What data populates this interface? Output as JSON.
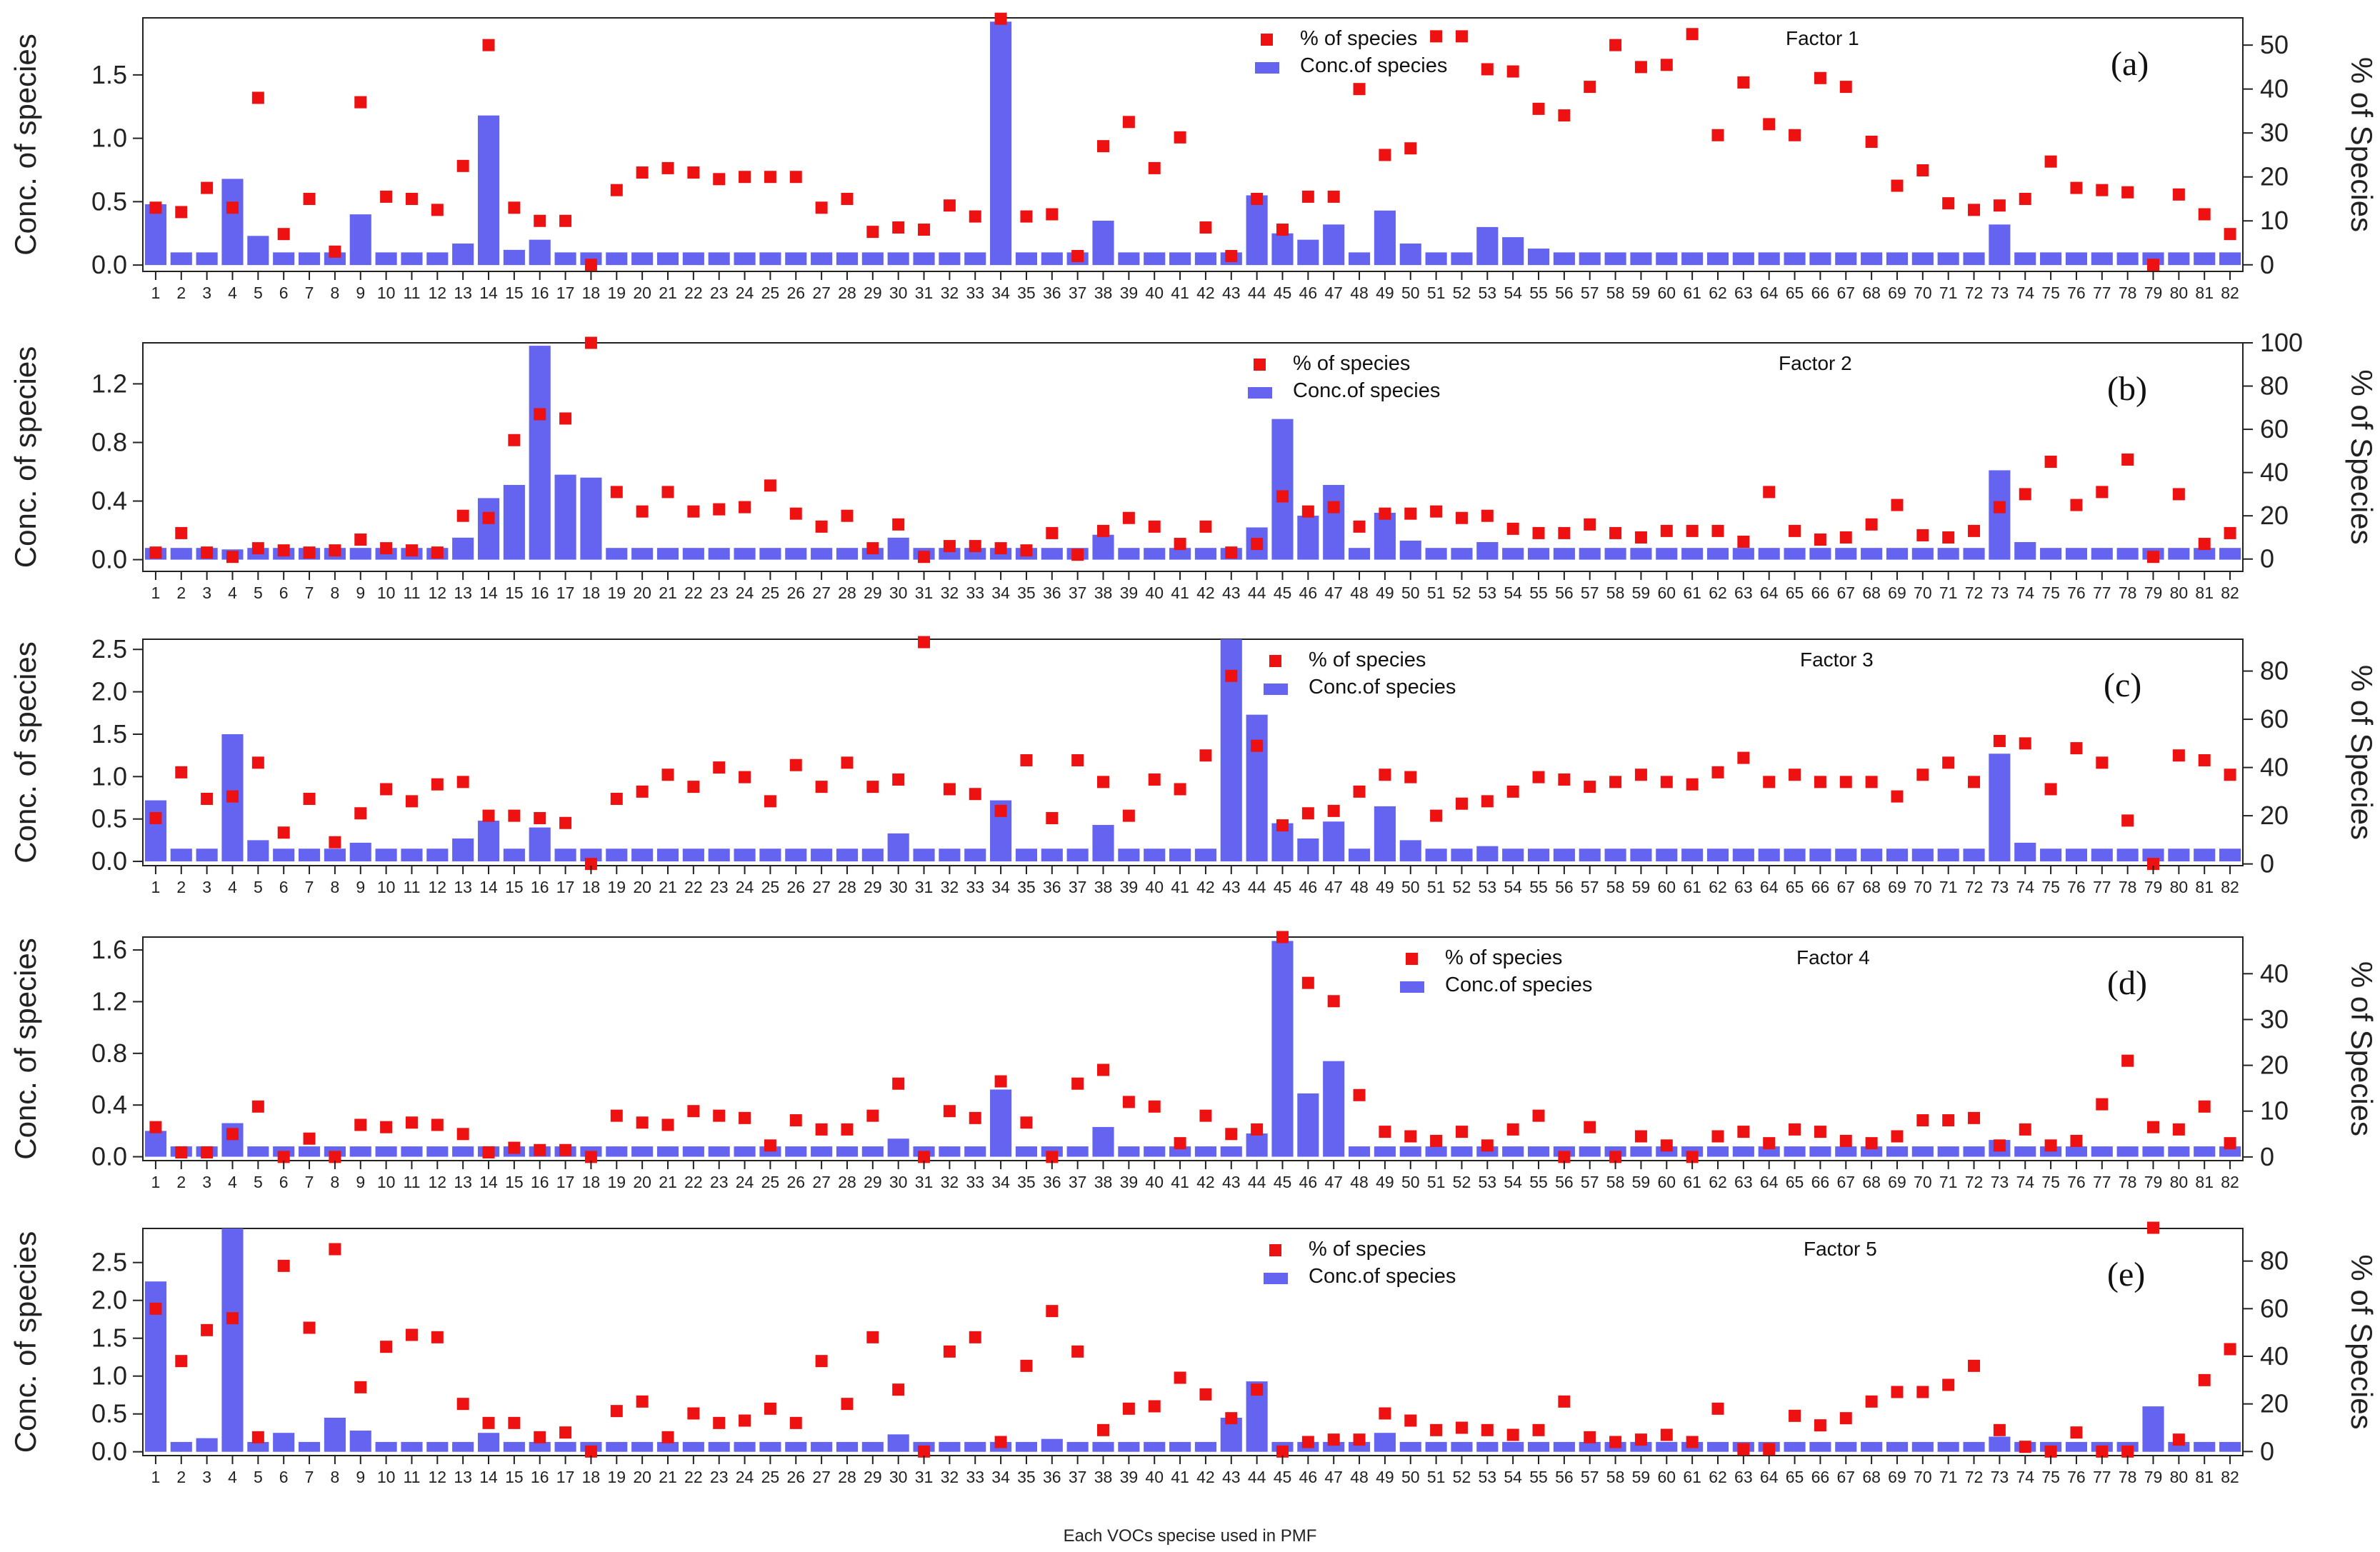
{
  "x_axis_label": "Each VOCs specise used in PMF",
  "y_axis_left_label": "Conc. of species",
  "y_axis_right_labels": [
    "% of Species",
    "% of Species",
    "% of Species",
    "% of Species",
    "% of Species"
  ],
  "colors": {
    "bar": "#6464f0",
    "marker": "#ee1111",
    "axis": "#222222"
  },
  "chart_data": [
    {
      "type": "bar+scatter",
      "panel_label": "(a)",
      "factor_label": "Factor 1",
      "legend_percent": "% of species",
      "legend_conc": "Conc.of species",
      "ylim_left": [
        -0.05,
        1.95
      ],
      "ylim_right": [
        -1.5,
        56.2
      ],
      "yticks_left": [
        "0.0",
        "0.5",
        "1.0",
        "1.5"
      ],
      "yticks_right": [
        "0",
        "10",
        "20",
        "30",
        "40",
        "50"
      ],
      "categories": [
        "1",
        "2",
        "3",
        "4",
        "5",
        "6",
        "7",
        "8",
        "9",
        "10",
        "11",
        "12",
        "13",
        "14",
        "15",
        "16",
        "17",
        "18",
        "19",
        "20",
        "21",
        "22",
        "23",
        "24",
        "25",
        "26",
        "27",
        "28",
        "29",
        "30",
        "31",
        "32",
        "33",
        "34",
        "35",
        "36",
        "37",
        "38",
        "39",
        "40",
        "41",
        "42",
        "43",
        "44",
        "45",
        "46",
        "47",
        "48",
        "49",
        "50",
        "51",
        "52",
        "53",
        "54",
        "55",
        "56",
        "57",
        "58",
        "59",
        "60",
        "61",
        "62",
        "63",
        "64",
        "65",
        "66",
        "67",
        "68",
        "69",
        "70",
        "71",
        "72",
        "73",
        "74",
        "75",
        "76",
        "77",
        "78",
        "79",
        "80",
        "81",
        "82"
      ],
      "conc": [
        0.48,
        0.1,
        0.1,
        0.68,
        0.23,
        0.1,
        0.1,
        0.1,
        0.4,
        0.1,
        0.1,
        0.1,
        0.17,
        1.18,
        0.12,
        0.2,
        0.1,
        0.1,
        0.1,
        0.1,
        0.1,
        0.1,
        0.1,
        0.1,
        0.1,
        0.1,
        0.1,
        0.1,
        0.1,
        0.1,
        0.1,
        0.1,
        0.1,
        1.92,
        0.1,
        0.1,
        0.1,
        0.35,
        0.1,
        0.1,
        0.1,
        0.1,
        0.1,
        0.55,
        0.25,
        0.2,
        0.32,
        0.1,
        0.43,
        0.17,
        0.1,
        0.1,
        0.3,
        0.22,
        0.13,
        0.1,
        0.1,
        0.1,
        0.1,
        0.1,
        0.1,
        0.1,
        0.1,
        0.1,
        0.1,
        0.1,
        0.1,
        0.1,
        0.1,
        0.1,
        0.1,
        0.1,
        0.32,
        0.1,
        0.1,
        0.1,
        0.1,
        0.1,
        0.1,
        0.1,
        0.1,
        0.1
      ],
      "percent": [
        13,
        12,
        17.5,
        13,
        38,
        7,
        15,
        3,
        37,
        15.5,
        15,
        12.5,
        22.5,
        50,
        13,
        10,
        10,
        0,
        17,
        21,
        22,
        21,
        19.5,
        20,
        20,
        20,
        13,
        15,
        7.5,
        8.5,
        8,
        13.5,
        11,
        56,
        11,
        11.5,
        2,
        27,
        32.5,
        22,
        29,
        8.5,
        2,
        15,
        8,
        15.5,
        15.5,
        40,
        25,
        26.5,
        52,
        52,
        44.5,
        44,
        35.5,
        34,
        40.5,
        50,
        45,
        45.5,
        52.5,
        29.5,
        41.5,
        32,
        29.5,
        42.5,
        40.5,
        28,
        18,
        21.5,
        14,
        12.5,
        13.5,
        15,
        23.5,
        17.5,
        17,
        16.5,
        0,
        16,
        11.5,
        7
      ]
    },
    {
      "type": "bar+scatter",
      "panel_label": "(b)",
      "factor_label": "Factor 2",
      "legend_percent": "% of species",
      "legend_conc": "Conc.of species",
      "ylim_left": [
        -0.08,
        1.48
      ],
      "ylim_right": [
        -5.7,
        100
      ],
      "yticks_left": [
        "0.0",
        "0.4",
        "0.8",
        "1.2"
      ],
      "yticks_right": [
        "0",
        "20",
        "40",
        "60",
        "80",
        "100"
      ],
      "categories": [
        "1",
        "2",
        "3",
        "4",
        "5",
        "6",
        "7",
        "8",
        "9",
        "10",
        "11",
        "12",
        "13",
        "14",
        "15",
        "16",
        "17",
        "18",
        "19",
        "20",
        "21",
        "22",
        "23",
        "24",
        "25",
        "26",
        "27",
        "28",
        "29",
        "30",
        "31",
        "32",
        "33",
        "34",
        "35",
        "36",
        "37",
        "38",
        "39",
        "40",
        "41",
        "42",
        "43",
        "44",
        "45",
        "46",
        "47",
        "48",
        "49",
        "50",
        "51",
        "52",
        "53",
        "54",
        "55",
        "56",
        "57",
        "58",
        "59",
        "60",
        "61",
        "62",
        "63",
        "64",
        "65",
        "66",
        "67",
        "68",
        "69",
        "70",
        "71",
        "72",
        "73",
        "74",
        "75",
        "76",
        "77",
        "78",
        "79",
        "80",
        "81",
        "82"
      ],
      "conc": [
        0.08,
        0.08,
        0.08,
        0.07,
        0.08,
        0.08,
        0.08,
        0.08,
        0.08,
        0.08,
        0.08,
        0.08,
        0.15,
        0.42,
        0.51,
        1.46,
        0.58,
        0.56,
        0.08,
        0.08,
        0.08,
        0.08,
        0.08,
        0.08,
        0.08,
        0.08,
        0.08,
        0.08,
        0.08,
        0.15,
        0.08,
        0.08,
        0.08,
        0.08,
        0.08,
        0.08,
        0.08,
        0.17,
        0.08,
        0.08,
        0.08,
        0.08,
        0.08,
        0.22,
        0.96,
        0.3,
        0.51,
        0.08,
        0.32,
        0.13,
        0.08,
        0.08,
        0.12,
        0.08,
        0.08,
        0.08,
        0.08,
        0.08,
        0.08,
        0.08,
        0.08,
        0.08,
        0.08,
        0.08,
        0.08,
        0.08,
        0.08,
        0.08,
        0.08,
        0.08,
        0.08,
        0.08,
        0.61,
        0.12,
        0.08,
        0.08,
        0.08,
        0.08,
        0.08,
        0.08,
        0.08,
        0.08
      ],
      "percent": [
        3,
        12,
        3,
        1,
        5,
        4,
        3,
        4,
        9,
        5,
        4,
        3,
        20,
        19,
        55,
        67,
        65,
        100,
        31,
        22,
        31,
        22,
        23,
        24,
        34,
        21,
        15,
        20,
        5,
        16,
        1,
        6,
        6,
        5,
        4,
        12,
        2,
        13,
        19,
        15,
        7,
        15,
        3,
        7,
        29,
        22,
        24,
        15,
        21,
        21,
        22,
        19,
        20,
        14,
        12,
        12,
        16,
        12,
        10,
        13,
        13,
        13,
        8,
        31,
        13,
        9,
        10,
        16,
        25,
        11,
        10,
        13,
        24,
        30,
        45,
        25,
        31,
        46,
        1,
        30,
        7,
        12
      ]
    },
    {
      "type": "bar+scatter",
      "panel_label": "(c)",
      "factor_label": "Factor 3",
      "legend_percent": "% of species",
      "legend_conc": "Conc.of species",
      "ylim_left": [
        -0.05,
        2.62
      ],
      "ylim_right": [
        -0.7,
        93.2
      ],
      "yticks_left": [
        "0.0",
        "0.5",
        "1.0",
        "1.5",
        "2.0",
        "2.5"
      ],
      "yticks_right": [
        "0",
        "20",
        "40",
        "60",
        "80"
      ],
      "categories": [
        "1",
        "2",
        "3",
        "4",
        "5",
        "6",
        "7",
        "8",
        "9",
        "10",
        "11",
        "12",
        "13",
        "14",
        "15",
        "16",
        "17",
        "18",
        "19",
        "20",
        "21",
        "22",
        "23",
        "24",
        "25",
        "26",
        "27",
        "28",
        "29",
        "30",
        "31",
        "32",
        "33",
        "34",
        "35",
        "36",
        "37",
        "38",
        "39",
        "40",
        "41",
        "42",
        "43",
        "44",
        "45",
        "46",
        "47",
        "48",
        "49",
        "50",
        "51",
        "52",
        "53",
        "54",
        "55",
        "56",
        "57",
        "58",
        "59",
        "60",
        "61",
        "62",
        "63",
        "64",
        "65",
        "66",
        "67",
        "68",
        "69",
        "70",
        "71",
        "72",
        "73",
        "74",
        "75",
        "76",
        "77",
        "78",
        "79",
        "80",
        "81",
        "82"
      ],
      "conc": [
        0.72,
        0.15,
        0.15,
        1.5,
        0.25,
        0.15,
        0.15,
        0.15,
        0.22,
        0.15,
        0.15,
        0.15,
        0.27,
        0.48,
        0.15,
        0.4,
        0.15,
        0.15,
        0.15,
        0.15,
        0.15,
        0.15,
        0.15,
        0.15,
        0.15,
        0.15,
        0.15,
        0.15,
        0.15,
        0.33,
        0.15,
        0.15,
        0.15,
        0.72,
        0.15,
        0.15,
        0.15,
        0.43,
        0.15,
        0.15,
        0.15,
        0.15,
        2.62,
        1.73,
        0.45,
        0.27,
        0.47,
        0.15,
        0.65,
        0.25,
        0.15,
        0.15,
        0.18,
        0.15,
        0.15,
        0.15,
        0.15,
        0.15,
        0.15,
        0.15,
        0.15,
        0.15,
        0.15,
        0.15,
        0.15,
        0.15,
        0.15,
        0.15,
        0.15,
        0.15,
        0.15,
        0.15,
        1.27,
        0.22,
        0.15,
        0.15,
        0.15,
        0.15,
        0.15,
        0.15,
        0.15,
        0.15
      ],
      "percent": [
        19,
        38,
        27,
        28,
        42,
        13,
        27,
        9,
        21,
        31,
        26,
        33,
        34,
        20,
        20,
        19,
        17,
        0,
        27,
        30,
        37,
        32,
        40,
        36,
        26,
        41,
        32,
        42,
        32,
        35,
        92,
        31,
        29,
        22,
        43,
        19,
        43,
        34,
        20,
        35,
        31,
        45,
        78,
        49,
        16,
        21,
        22,
        30,
        37,
        36,
        20,
        25,
        26,
        30,
        36,
        35,
        32,
        34,
        37,
        34,
        33,
        38,
        44,
        34,
        37,
        34,
        34,
        34,
        28,
        37,
        42,
        34,
        51,
        50,
        31,
        48,
        42,
        18,
        0,
        45,
        43,
        37
      ]
    },
    {
      "type": "bar+scatter",
      "panel_label": "(d)",
      "factor_label": "Factor 4",
      "legend_percent": "% of species",
      "legend_conc": "Conc.of species",
      "ylim_left": [
        -0.03,
        1.7
      ],
      "ylim_right": [
        -0.8,
        48
      ],
      "yticks_left": [
        "0.0",
        "0.4",
        "0.8",
        "1.2",
        "1.6"
      ],
      "yticks_right": [
        "0",
        "10",
        "20",
        "30",
        "40"
      ],
      "categories": [
        "1",
        "2",
        "3",
        "4",
        "5",
        "6",
        "7",
        "8",
        "9",
        "10",
        "11",
        "12",
        "13",
        "14",
        "15",
        "16",
        "17",
        "18",
        "19",
        "20",
        "21",
        "22",
        "23",
        "24",
        "25",
        "26",
        "27",
        "28",
        "29",
        "30",
        "31",
        "32",
        "33",
        "34",
        "35",
        "36",
        "37",
        "38",
        "39",
        "40",
        "41",
        "42",
        "43",
        "44",
        "45",
        "46",
        "47",
        "48",
        "49",
        "50",
        "51",
        "52",
        "53",
        "54",
        "55",
        "56",
        "57",
        "58",
        "59",
        "60",
        "61",
        "62",
        "63",
        "64",
        "65",
        "66",
        "67",
        "68",
        "69",
        "70",
        "71",
        "72",
        "73",
        "74",
        "75",
        "76",
        "77",
        "78",
        "79",
        "80",
        "81",
        "82"
      ],
      "conc": [
        0.2,
        0.08,
        0.08,
        0.26,
        0.08,
        0.08,
        0.08,
        0.08,
        0.08,
        0.08,
        0.08,
        0.08,
        0.08,
        0.08,
        0.08,
        0.08,
        0.08,
        0.08,
        0.08,
        0.08,
        0.08,
        0.08,
        0.08,
        0.08,
        0.08,
        0.08,
        0.08,
        0.08,
        0.08,
        0.14,
        0.08,
        0.08,
        0.08,
        0.52,
        0.08,
        0.08,
        0.08,
        0.23,
        0.08,
        0.08,
        0.08,
        0.08,
        0.08,
        0.18,
        1.67,
        0.49,
        0.74,
        0.08,
        0.08,
        0.08,
        0.08,
        0.08,
        0.08,
        0.08,
        0.08,
        0.08,
        0.08,
        0.08,
        0.08,
        0.08,
        0.08,
        0.08,
        0.08,
        0.08,
        0.08,
        0.08,
        0.08,
        0.08,
        0.08,
        0.08,
        0.08,
        0.08,
        0.13,
        0.08,
        0.08,
        0.08,
        0.08,
        0.08,
        0.08,
        0.08,
        0.08,
        0.08
      ],
      "percent": [
        6.5,
        1,
        1,
        5,
        11,
        0,
        4,
        0,
        7,
        6.5,
        7.5,
        7,
        5,
        1,
        2,
        1.5,
        1.5,
        0,
        9,
        7.5,
        7,
        10,
        9,
        8.5,
        2.5,
        8,
        6,
        6,
        9,
        16,
        0,
        10,
        8.5,
        16.5,
        7.5,
        0,
        16,
        19,
        12,
        11,
        3,
        9,
        5,
        6,
        48,
        38,
        34,
        13.5,
        5.5,
        4.5,
        3.5,
        5.5,
        2.5,
        6,
        9,
        0,
        6.5,
        0,
        4.5,
        2.5,
        0,
        4.5,
        5.5,
        3,
        6,
        5.5,
        3.5,
        3,
        4.5,
        8,
        8,
        8.5,
        2.5,
        6,
        2.5,
        3.5,
        11.5,
        21,
        6.5,
        6,
        11,
        3
      ]
    },
    {
      "type": "bar+scatter",
      "panel_label": "(e)",
      "factor_label": "Factor 5",
      "legend_percent": "% of species",
      "legend_conc": "Conc.of species",
      "ylim_left": [
        -0.05,
        2.95
      ],
      "ylim_right": [
        -1.7,
        93.7
      ],
      "yticks_left": [
        "0.0",
        "0.5",
        "1.0",
        "1.5",
        "2.0",
        "2.5"
      ],
      "yticks_right": [
        "0",
        "20",
        "40",
        "60",
        "80"
      ],
      "categories": [
        "1",
        "2",
        "3",
        "4",
        "5",
        "6",
        "7",
        "8",
        "9",
        "10",
        "11",
        "12",
        "13",
        "14",
        "15",
        "16",
        "17",
        "18",
        "19",
        "20",
        "21",
        "22",
        "23",
        "24",
        "25",
        "26",
        "27",
        "28",
        "29",
        "30",
        "31",
        "32",
        "33",
        "34",
        "35",
        "36",
        "37",
        "38",
        "39",
        "40",
        "41",
        "42",
        "43",
        "44",
        "45",
        "46",
        "47",
        "48",
        "49",
        "50",
        "51",
        "52",
        "53",
        "54",
        "55",
        "56",
        "57",
        "58",
        "59",
        "60",
        "61",
        "62",
        "63",
        "64",
        "65",
        "66",
        "67",
        "68",
        "69",
        "70",
        "71",
        "72",
        "73",
        "74",
        "75",
        "76",
        "77",
        "78",
        "79",
        "80",
        "81",
        "82"
      ],
      "conc": [
        2.25,
        0.13,
        0.18,
        2.95,
        0.13,
        0.25,
        0.13,
        0.45,
        0.28,
        0.13,
        0.13,
        0.13,
        0.13,
        0.25,
        0.13,
        0.13,
        0.13,
        0.13,
        0.13,
        0.13,
        0.13,
        0.13,
        0.13,
        0.13,
        0.13,
        0.13,
        0.13,
        0.13,
        0.13,
        0.23,
        0.13,
        0.13,
        0.13,
        0.13,
        0.13,
        0.17,
        0.13,
        0.13,
        0.13,
        0.13,
        0.13,
        0.13,
        0.45,
        0.93,
        0.13,
        0.13,
        0.13,
        0.13,
        0.25,
        0.13,
        0.13,
        0.13,
        0.13,
        0.13,
        0.13,
        0.13,
        0.13,
        0.13,
        0.13,
        0.13,
        0.13,
        0.13,
        0.13,
        0.13,
        0.13,
        0.13,
        0.13,
        0.13,
        0.13,
        0.13,
        0.13,
        0.13,
        0.2,
        0.13,
        0.13,
        0.13,
        0.13,
        0.13,
        0.6,
        0.13,
        0.13,
        0.13
      ],
      "percent": [
        60,
        38,
        51,
        56,
        6,
        78,
        52,
        85,
        27,
        44,
        49,
        48,
        20,
        12,
        12,
        6,
        8,
        0,
        17,
        21,
        6,
        16,
        12,
        13,
        18,
        12,
        38,
        20,
        48,
        26,
        0,
        42,
        48,
        4,
        36,
        59,
        42,
        9,
        18,
        19,
        31,
        24,
        14,
        26,
        0,
        4,
        5,
        5,
        16,
        13,
        9,
        10,
        9,
        7,
        9,
        21,
        6,
        4,
        5,
        7,
        4,
        18,
        1,
        1,
        15,
        11,
        14,
        21,
        25,
        25,
        28,
        36,
        9,
        2,
        0,
        8,
        0,
        0,
        94,
        5,
        30,
        43
      ]
    }
  ]
}
